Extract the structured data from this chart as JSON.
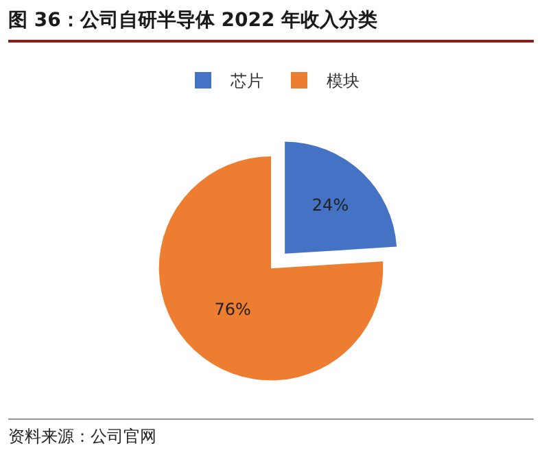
{
  "chart_data": {
    "type": "pie",
    "title": "图 36：公司自研半导体 2022 年收入分类",
    "categories": [
      "芯片",
      "模块"
    ],
    "values": [
      24,
      76
    ],
    "colors": [
      "#4472c4",
      "#ed7d31"
    ],
    "value_labels": [
      "24%",
      "76%"
    ],
    "legend": "top",
    "annotations": [
      "资料来源：公司官网"
    ]
  }
}
